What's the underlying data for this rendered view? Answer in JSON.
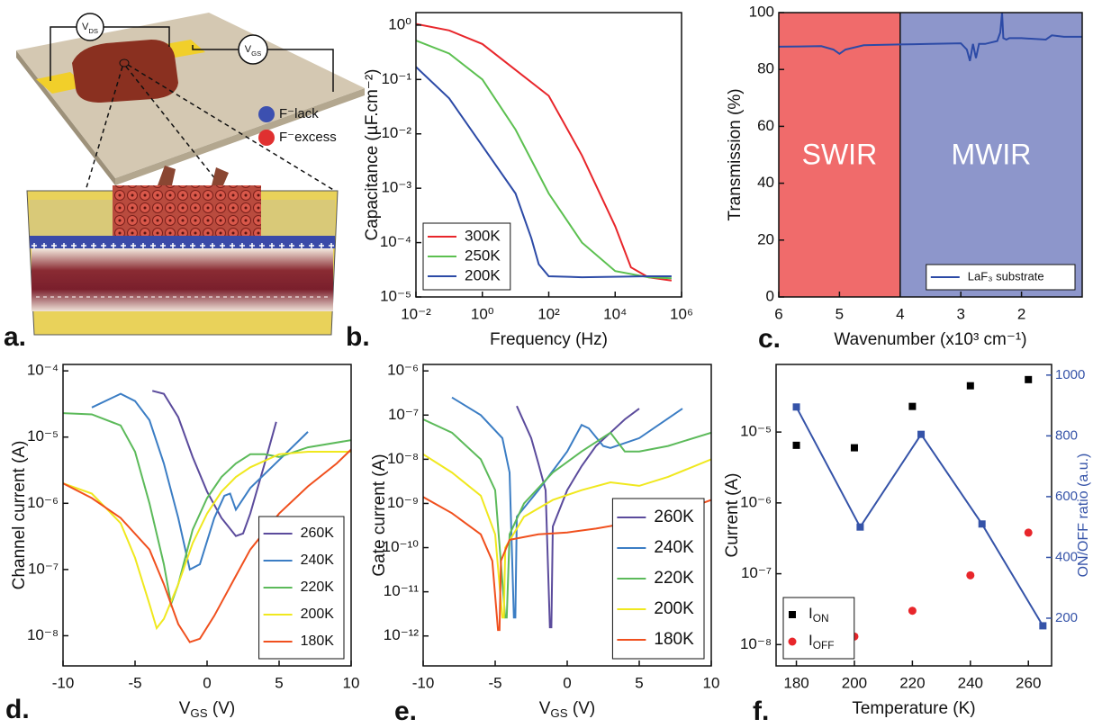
{
  "illustration": {
    "panel": "a.",
    "labels": [
      "VDS",
      "VGS",
      "F⁻lack",
      "F⁻excess"
    ]
  },
  "chart_data": [
    {
      "type": "line",
      "panel": "b.",
      "xlabel": "Frequency (Hz)",
      "ylabel": "Capacitance (µF.cm⁻²)",
      "xlog": true,
      "ylog": true,
      "xlim": [
        0.01,
        1000000
      ],
      "ylim": [
        1e-05,
        1.7
      ],
      "xticks": [
        {
          "value": 0.01,
          "label": "10⁻²"
        },
        {
          "value": 1,
          "label": "10⁰"
        },
        {
          "value": 100,
          "label": "10²"
        },
        {
          "value": 10000,
          "label": "10⁴"
        },
        {
          "value": 1000000,
          "label": "10⁶"
        }
      ],
      "yticks": [
        {
          "value": 1e-05,
          "label": "10⁻⁵"
        },
        {
          "value": 0.0001,
          "label": "10⁻⁴"
        },
        {
          "value": 0.001,
          "label": "10⁻³"
        },
        {
          "value": 0.01,
          "label": "10⁻²"
        },
        {
          "value": 0.1,
          "label": "10⁻¹"
        },
        {
          "value": 1,
          "label": "10⁰"
        }
      ],
      "legend": "lower left",
      "series": [
        {
          "name": "300K",
          "color": "#e8262b",
          "x": [
            0.01,
            0.1,
            1,
            10,
            100,
            1000,
            10000,
            30000,
            100000,
            500000
          ],
          "values": [
            1.05,
            0.8,
            0.45,
            0.15,
            0.05,
            0.004,
            0.0002,
            3.5e-05,
            2.3e-05,
            2e-05
          ]
        },
        {
          "name": "250K",
          "color": "#5cc050",
          "x": [
            0.01,
            0.1,
            1,
            10,
            100,
            1000,
            10000,
            100000,
            500000
          ],
          "values": [
            0.52,
            0.3,
            0.1,
            0.012,
            0.0008,
            0.0001,
            3e-05,
            2.3e-05,
            2.2e-05
          ]
        },
        {
          "name": "200K",
          "color": "#2c4aa6",
          "x": [
            0.01,
            0.1,
            1,
            10,
            30,
            50,
            100,
            1000,
            100000,
            500000
          ],
          "values": [
            0.17,
            0.045,
            0.006,
            0.0008,
            0.00012,
            4e-05,
            2.4e-05,
            2.3e-05,
            2.4e-05,
            2.4e-05
          ]
        }
      ]
    },
    {
      "type": "line",
      "panel": "c.",
      "xlabel": "Wavenumber (x10³ cm⁻¹)",
      "ylabel": "Transmission (%)",
      "xlim": [
        6,
        1
      ],
      "ylim": [
        0,
        100
      ],
      "xticks": [
        6,
        5,
        4,
        3,
        2
      ],
      "yticks": [
        0,
        20,
        40,
        60,
        80,
        100
      ],
      "legend": "lower right",
      "regions": [
        {
          "label": "SWIR",
          "from": 6,
          "to": 4,
          "color": "#f06b6b"
        },
        {
          "label": "MWIR",
          "from": 4,
          "to": 1,
          "color": "#8d96cb"
        }
      ],
      "series": [
        {
          "name": "LaF₃ substrate",
          "color": "#2c4aa6",
          "x": [
            6,
            5.3,
            5.1,
            5.0,
            4.9,
            4.6,
            4.0,
            3.5,
            3.0,
            2.9,
            2.85,
            2.8,
            2.75,
            2.7,
            2.6,
            2.5,
            2.4,
            2.35,
            2.32,
            2.3,
            2.25,
            2.2,
            2.0,
            1.6,
            1.5,
            1.3,
            1.0
          ],
          "values": [
            88,
            88.2,
            87,
            85.5,
            87,
            88.5,
            88.8,
            89,
            89.2,
            87,
            83,
            89,
            84,
            89,
            89,
            89.5,
            90,
            93,
            100,
            91,
            90.5,
            91,
            91,
            90.5,
            92,
            91.5,
            91.5
          ]
        }
      ]
    },
    {
      "type": "line",
      "panel": "d.",
      "xlabel": "VGS (V)",
      "ylabel": "Channel current (A)",
      "ylog": true,
      "xlim": [
        -10,
        10
      ],
      "ylim": [
        3.5e-09,
        0.000125
      ],
      "xticks": [
        -10,
        -5,
        0,
        5,
        10
      ],
      "yticks": [
        {
          "value": 1e-08,
          "label": "10⁻⁸"
        },
        {
          "value": 1e-07,
          "label": "10⁻⁷"
        },
        {
          "value": 1e-06,
          "label": "10⁻⁶"
        },
        {
          "value": 1e-05,
          "label": "10⁻⁵"
        },
        {
          "value": 0.0001,
          "label": "10⁻⁴"
        }
      ],
      "legend": "lower right",
      "series": [
        {
          "name": "260K",
          "color": "#5b4b9c",
          "x": [
            -3.8,
            -3,
            -2,
            -1,
            0,
            1,
            2,
            2.5,
            3,
            4,
            4.8
          ],
          "values": [
            5e-05,
            4.5e-05,
            2e-05,
            5e-06,
            1.5e-06,
            6e-07,
            3.2e-07,
            3.5e-07,
            7e-07,
            4e-06,
            1.7e-05
          ]
        },
        {
          "name": "240K",
          "color": "#3b7dc4",
          "x": [
            -8,
            -6,
            -5,
            -4,
            -3,
            -2,
            -1.2,
            -0.5,
            0.5,
            1.2,
            1.6,
            2,
            3,
            5,
            7
          ],
          "values": [
            2.8e-05,
            4.5e-05,
            3.5e-05,
            1.8e-05,
            4e-06,
            6e-07,
            1e-07,
            1.2e-07,
            6e-07,
            1.3e-06,
            1.4e-06,
            8e-07,
            1.7e-06,
            4.5e-06,
            1.2e-05
          ]
        },
        {
          "name": "220K",
          "color": "#5cba5a",
          "x": [
            -10,
            -8,
            -6,
            -5,
            -4,
            -3,
            -2.5,
            -2,
            -1,
            0,
            1,
            2,
            3,
            4,
            5,
            7,
            10
          ],
          "values": [
            2.3e-05,
            2.2e-05,
            1.5e-05,
            6e-06,
            1e-06,
            1.2e-07,
            3e-08,
            6e-08,
            4e-07,
            1.2e-06,
            2.5e-06,
            4e-06,
            5.5e-06,
            5.5e-06,
            5e-06,
            7e-06,
            9e-06
          ]
        },
        {
          "name": "200K",
          "color": "#f0e81e",
          "x": [
            -10,
            -8,
            -6,
            -5,
            -4,
            -3.5,
            -3,
            -2,
            -1,
            0,
            1,
            2,
            3,
            5,
            7,
            10
          ],
          "values": [
            2e-06,
            1.4e-06,
            5e-07,
            1.5e-07,
            3e-08,
            1.3e-08,
            1.8e-08,
            6e-08,
            2.5e-07,
            7e-07,
            1.5e-06,
            2.5e-06,
            3.5e-06,
            5.5e-06,
            6e-06,
            6e-06
          ]
        },
        {
          "name": "180K",
          "color": "#f0501e",
          "x": [
            -10,
            -8,
            -6,
            -4,
            -3,
            -2,
            -1.2,
            -0.5,
            0.5,
            2,
            3,
            5,
            7,
            9,
            10
          ],
          "values": [
            2e-06,
            1.2e-06,
            6e-07,
            2e-07,
            6e-08,
            1.5e-08,
            8e-09,
            9e-09,
            2e-08,
            8e-08,
            2e-07,
            7e-07,
            1.8e-06,
            4e-06,
            6.5e-06
          ]
        }
      ]
    },
    {
      "type": "line",
      "panel": "e.",
      "xlabel": "VGS (V)",
      "ylabel": "Gate current (A)",
      "ylog": true,
      "xlim": [
        -10,
        10
      ],
      "ylim": [
        2.1e-13,
        1.4e-06
      ],
      "xticks": [
        -10,
        -5,
        0,
        5,
        10
      ],
      "yticks": [
        {
          "value": 1e-12,
          "label": "10⁻¹²"
        },
        {
          "value": 1e-11,
          "label": "10⁻¹¹"
        },
        {
          "value": 1e-10,
          "label": "10⁻¹⁰"
        },
        {
          "value": 1e-09,
          "label": "10⁻⁹"
        },
        {
          "value": 1e-08,
          "label": "10⁻⁸"
        },
        {
          "value": 1e-07,
          "label": "10⁻⁷"
        },
        {
          "value": 1e-06,
          "label": "10⁻⁶"
        }
      ],
      "legend": "lower right",
      "series": [
        {
          "name": "260K",
          "color": "#5b4b9c",
          "x": [
            -3.5,
            -2.5,
            -2,
            -1.5,
            -1.2,
            null,
            -1.1,
            -1,
            0,
            1,
            2,
            3,
            4,
            5
          ],
          "values": [
            1.6e-07,
            3e-08,
            8e-09,
            2e-09,
            1.5e-12,
            null,
            1.5e-12,
            3e-10,
            2e-09,
            7e-09,
            2e-08,
            4e-08,
            8e-08,
            1.4e-07
          ]
        },
        {
          "name": "240K",
          "color": "#3b7dc4",
          "x": [
            -8,
            -6,
            -4.5,
            -4,
            -3.7,
            null,
            -3.6,
            -3.5,
            -2,
            0,
            1,
            1.5,
            2.5,
            3,
            5,
            8
          ],
          "values": [
            2.5e-07,
            1e-07,
            3e-08,
            5e-09,
            2.5e-12,
            null,
            2.5e-12,
            5e-10,
            2e-09,
            1.5e-08,
            6e-08,
            5e-08,
            2e-08,
            1.8e-08,
            3e-08,
            1.4e-07
          ]
        },
        {
          "name": "220K",
          "color": "#5cba5a",
          "x": [
            -10,
            -8,
            -6,
            -5,
            -4.3,
            null,
            -4.2,
            -4,
            -3,
            -1,
            1,
            3,
            4,
            5,
            7,
            10
          ],
          "values": [
            8e-08,
            4e-08,
            1e-08,
            2e-09,
            2.5e-12,
            null,
            2.5e-12,
            2e-10,
            1e-09,
            5e-09,
            1.5e-08,
            4e-08,
            1.5e-08,
            1.5e-08,
            2e-08,
            4e-08
          ]
        },
        {
          "name": "200K",
          "color": "#f0e81e",
          "x": [
            -10,
            -8,
            -6,
            -5,
            -4.5,
            null,
            -4.4,
            -4.3,
            -3,
            -1,
            1,
            3,
            5,
            7,
            10
          ],
          "values": [
            1.3e-08,
            5e-09,
            1.5e-09,
            2e-10,
            2.5e-12,
            null,
            2.5e-12,
            1e-10,
            5e-10,
            1.2e-09,
            2e-09,
            3e-09,
            2.5e-09,
            4e-09,
            1e-08
          ]
        },
        {
          "name": "180K",
          "color": "#f0501e",
          "x": [
            -10,
            -8,
            -6,
            -5.2,
            -4.8,
            null,
            -4.7,
            -4.6,
            -4,
            -2,
            0,
            2,
            4,
            6,
            8,
            10
          ],
          "values": [
            1.4e-09,
            6e-10,
            2e-10,
            5e-11,
            1.3e-12,
            null,
            1.3e-12,
            5e-11,
            1.5e-10,
            2e-10,
            2.2e-10,
            2.7e-10,
            3.5e-10,
            4.5e-10,
            7e-10,
            1.2e-09
          ]
        }
      ]
    },
    {
      "type": "scatter",
      "panel": "f.",
      "xlabel": "Temperature (K)",
      "ylabel": "Current (A)",
      "y2label": "ON/OFF ratio (a.u.)",
      "y2color": "#3553a8",
      "ylog": true,
      "xlim": [
        173,
        268
      ],
      "ylim": [
        5e-09,
        9e-05
      ],
      "y2lim": [
        43,
        1035
      ],
      "xticks": [
        180,
        200,
        220,
        240,
        260
      ],
      "yticks": [
        {
          "value": 1e-08,
          "label": "10⁻⁸"
        },
        {
          "value": 1e-07,
          "label": "10⁻⁷"
        },
        {
          "value": 1e-06,
          "label": "10⁻⁶"
        },
        {
          "value": 1e-05,
          "label": "10⁻⁵"
        }
      ],
      "y2ticks": [
        200,
        400,
        600,
        800,
        1000
      ],
      "legend": "lower left",
      "series": [
        {
          "name": "ION",
          "color": "#000000",
          "marker": "square",
          "x": [
            180,
            200,
            220,
            240,
            260
          ],
          "values": [
            6.5e-06,
            6e-06,
            2.3e-05,
            4.5e-05,
            5.5e-05
          ]
        },
        {
          "name": "IOFF",
          "color": "#e8262b",
          "marker": "circle",
          "x": [
            180,
            200,
            220,
            240,
            260
          ],
          "values": [
            7.5e-09,
            1.3e-08,
            3e-08,
            9.5e-08,
            3.8e-07
          ]
        },
        {
          "color": "#3553a8",
          "marker": "square",
          "line": true,
          "axis": "y2",
          "x": [
            180,
            202,
            223,
            244,
            265
          ],
          "values": [
            895,
            500,
            805,
            510,
            175
          ]
        }
      ]
    }
  ]
}
